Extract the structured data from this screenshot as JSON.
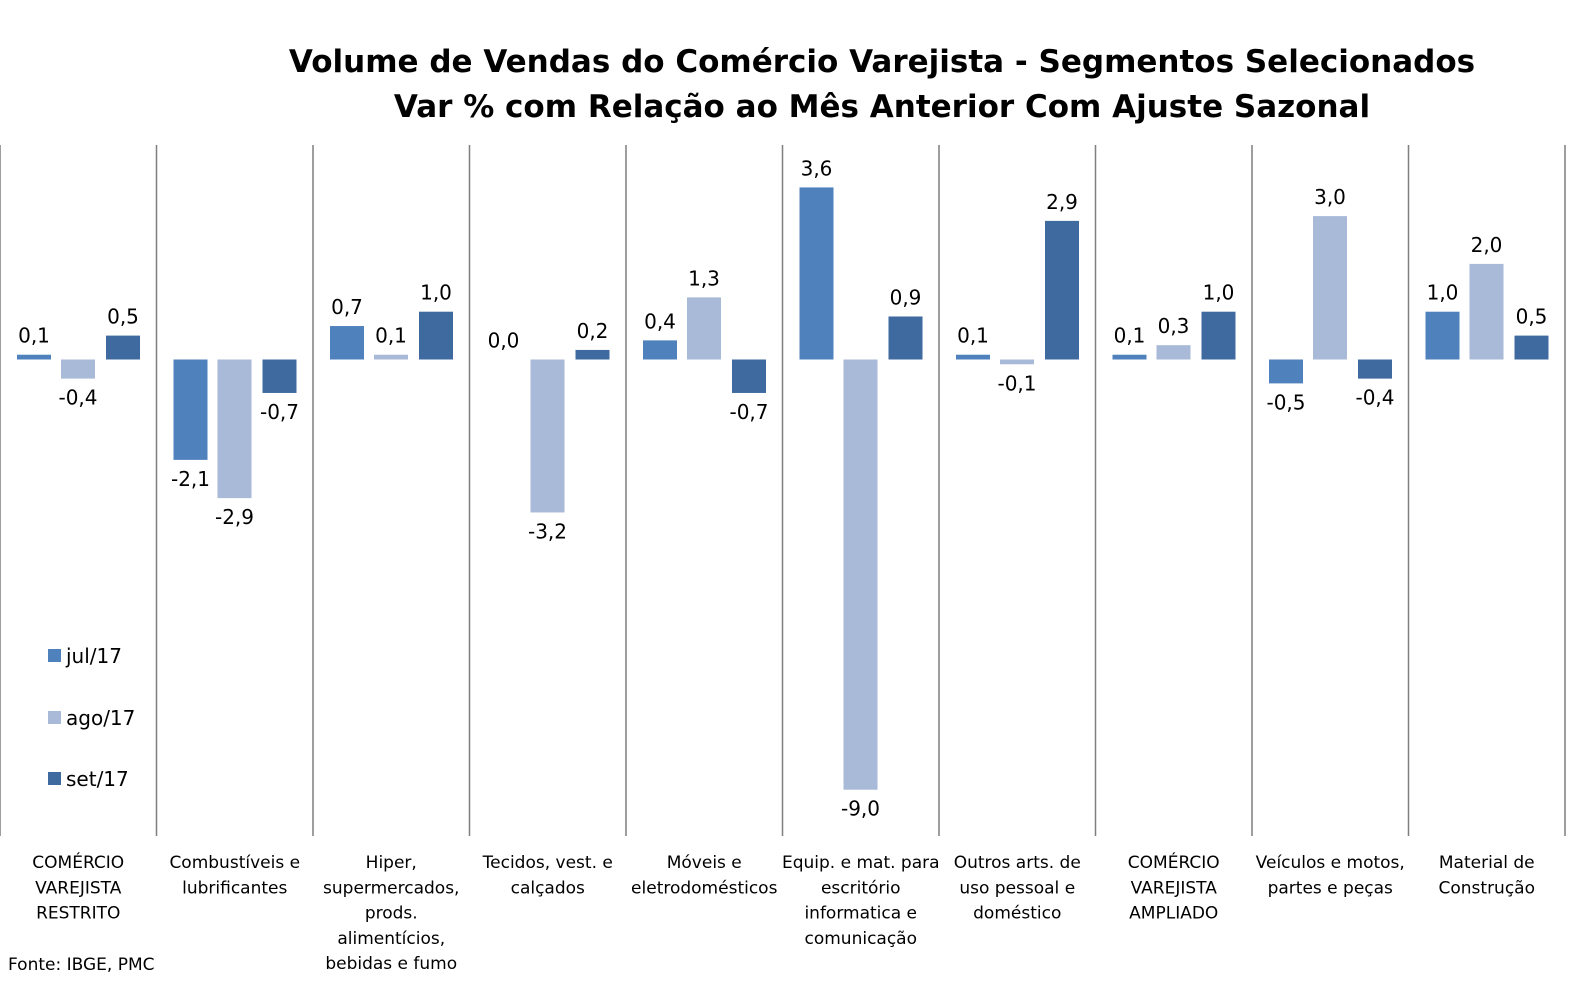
{
  "chart_data": {
    "type": "bar",
    "title_lines": [
      "Volume de Vendas do Comércio Varejista - Segmentos Selecionados",
      "Var % com Relação ao Mês Anterior Com Ajuste Sazonal"
    ],
    "categories": [
      [
        "COMÉRCIO",
        "VAREJISTA",
        "RESTRITO"
      ],
      [
        "Combustíveis e",
        "lubrificantes"
      ],
      [
        "Hiper,",
        "supermercados,",
        "prods.",
        "alimentícios,",
        "bebidas e fumo"
      ],
      [
        "Tecidos, vest. e",
        "calçados"
      ],
      [
        "Móveis e",
        "eletrodomésticos"
      ],
      [
        "Equip. e mat. para",
        "escritório",
        "informatica e",
        "comunicação"
      ],
      [
        "Outros arts. de",
        "uso pessoal e",
        "doméstico"
      ],
      [
        "COMÉRCIO",
        "VAREJISTA",
        "AMPLIADO"
      ],
      [
        "Veículos e motos,",
        "partes e peças"
      ],
      [
        "Material de",
        "Construção"
      ]
    ],
    "series": [
      {
        "name": "jul/17",
        "color": "#4f81bd",
        "values": [
          0.1,
          -2.1,
          0.7,
          0.0,
          0.4,
          3.6,
          0.1,
          0.1,
          -0.5,
          1.0
        ],
        "labels": [
          "0,1",
          "-2,1",
          "0,7",
          "0,0",
          "0,4",
          "3,6",
          "0,1",
          "0,1",
          "-0,5",
          "1,0"
        ]
      },
      {
        "name": "ago/17",
        "color": "#a9bad8",
        "values": [
          -0.4,
          -2.9,
          0.1,
          -3.2,
          1.3,
          -9.0,
          -0.1,
          0.3,
          3.0,
          2.0
        ],
        "labels": [
          "-0,4",
          "-2,9",
          "0,1",
          "-3,2",
          "1,3",
          "-9,0",
          "-0,1",
          "0,3",
          "3,0",
          "2,0"
        ]
      },
      {
        "name": "set/17",
        "color": "#3e6aa0",
        "values": [
          0.5,
          -0.7,
          1.0,
          0.2,
          -0.7,
          0.9,
          2.9,
          1.0,
          -0.4,
          0.5
        ],
        "labels": [
          "0,5",
          "-0,7",
          "1,0",
          "0,2",
          "-0,7",
          "0,9",
          "2,9",
          "1,0",
          "-0,4",
          "0,5"
        ]
      }
    ],
    "legend_position": "left",
    "grid": false,
    "source": "Fonte: IBGE, PMC"
  }
}
